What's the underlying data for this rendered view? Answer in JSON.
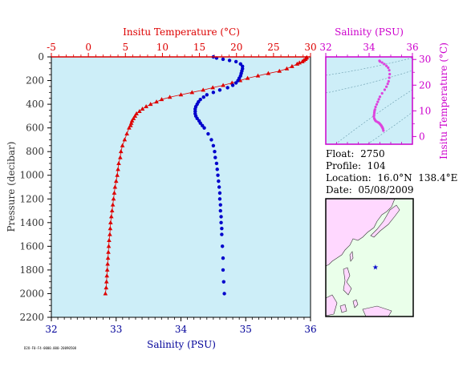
{
  "chart_data": [
    {
      "type": "scatter",
      "xlabel_top": "Insitu Temperature (°C)",
      "xlabel_bottom": "Salinity (PSU)",
      "ylabel": "Pressure (decibar)",
      "temp_ticks": [
        "-5",
        "0",
        "5",
        "10",
        "15",
        "20",
        "25",
        "30"
      ],
      "sal_ticks": [
        "32",
        "33",
        "34",
        "35",
        "36"
      ],
      "pressure_ticks": [
        "0",
        "200",
        "400",
        "600",
        "800",
        "1000",
        "1200",
        "1400",
        "1600",
        "1800",
        "2000",
        "2200"
      ],
      "temp_xlim": [
        -5,
        30
      ],
      "sal_xlim": [
        32,
        36
      ],
      "ylim": [
        0,
        2200
      ],
      "y_inverted": true,
      "colors": {
        "temperature": "#dd0000",
        "salinity": "#0000cc",
        "plot_bg": "#cdeef8"
      },
      "temperature": {
        "pressure": [
          5,
          10,
          20,
          30,
          40,
          50,
          60,
          80,
          100,
          120,
          140,
          160,
          180,
          200,
          220,
          240,
          260,
          280,
          300,
          320,
          340,
          360,
          380,
          400,
          420,
          440,
          460,
          480,
          500,
          520,
          540,
          560,
          580,
          600,
          650,
          700,
          750,
          800,
          850,
          900,
          950,
          1000,
          1050,
          1100,
          1150,
          1200,
          1250,
          1300,
          1350,
          1400,
          1450,
          1500,
          1550,
          1600,
          1650,
          1700,
          1750,
          1800,
          1850,
          1900,
          1950,
          2000
        ],
        "values": [
          29.5,
          29.4,
          29.3,
          29.1,
          28.9,
          28.5,
          28.2,
          27.5,
          26.8,
          25.8,
          24.3,
          22.9,
          21.5,
          20.5,
          19.4,
          18.2,
          16.8,
          15.5,
          14.0,
          12.5,
          11.0,
          9.9,
          9.2,
          8.4,
          7.8,
          7.3,
          6.9,
          6.5,
          6.3,
          6.1,
          5.9,
          5.8,
          5.7,
          5.5,
          5.2,
          4.9,
          4.6,
          4.4,
          4.3,
          4.1,
          4.0,
          3.9,
          3.75,
          3.6,
          3.5,
          3.4,
          3.3,
          3.2,
          3.1,
          3.0,
          2.95,
          2.9,
          2.8,
          2.75,
          2.7,
          2.65,
          2.6,
          2.55,
          2.5,
          2.45,
          2.4,
          2.3
        ]
      },
      "salinity": {
        "pressure": [
          0,
          10,
          20,
          30,
          40,
          60,
          80,
          100,
          120,
          140,
          160,
          180,
          200,
          220,
          240,
          260,
          280,
          300,
          320,
          340,
          360,
          380,
          400,
          420,
          440,
          460,
          480,
          500,
          520,
          540,
          560,
          580,
          600,
          650,
          700,
          750,
          800,
          850,
          900,
          950,
          1000,
          1050,
          1100,
          1150,
          1200,
          1250,
          1300,
          1350,
          1400,
          1450,
          1500,
          1600,
          1700,
          1800,
          1900,
          2000
        ],
        "values": [
          34.5,
          34.55,
          34.65,
          34.75,
          34.85,
          34.92,
          34.95,
          34.95,
          34.94,
          34.93,
          34.92,
          34.9,
          34.88,
          34.85,
          34.8,
          34.72,
          34.6,
          34.5,
          34.4,
          34.35,
          34.3,
          34.27,
          34.25,
          34.23,
          34.22,
          34.22,
          34.22,
          34.23,
          34.25,
          34.28,
          34.3,
          34.33,
          34.36,
          34.42,
          34.47,
          34.5,
          34.52,
          34.53,
          34.55,
          34.56,
          34.57,
          34.58,
          34.59,
          34.6,
          34.6,
          34.61,
          34.61,
          34.62,
          34.62,
          34.63,
          34.63,
          34.64,
          34.65,
          34.65,
          34.66,
          34.67
        ]
      }
    },
    {
      "type": "scatter",
      "title": "Salinity (PSU)",
      "ylabel": "Insitu Temperature (°C)",
      "x_ticks": [
        "32",
        "34",
        "36"
      ],
      "y_ticks": [
        "0",
        "10",
        "20",
        "30"
      ],
      "xlim": [
        32,
        36
      ],
      "ylim": [
        -3,
        31
      ],
      "colors": {
        "frame": "#cc00cc",
        "points": "#dd44dd",
        "plot_bg": "#cdeef8"
      },
      "points": {
        "salinity": [
          34.48,
          34.5,
          34.6,
          34.7,
          34.8,
          34.88,
          34.93,
          34.95,
          34.93,
          34.9,
          34.86,
          34.8,
          34.72,
          34.6,
          34.5,
          34.45,
          34.4,
          34.35,
          34.3,
          34.27,
          34.25,
          34.24,
          34.23,
          34.22,
          34.24,
          34.27,
          34.3,
          34.35,
          34.42,
          34.47,
          34.5,
          34.53,
          34.56,
          34.58,
          34.6,
          34.62,
          34.64,
          34.66
        ],
        "temperature": [
          29.5,
          29.2,
          28.8,
          28.2,
          27.5,
          26.8,
          25.8,
          24.3,
          22.9,
          21.5,
          20.5,
          19.4,
          18.2,
          16.8,
          15.5,
          14.5,
          13.5,
          12.5,
          11.5,
          10.5,
          9.9,
          9.2,
          8.4,
          7.8,
          7.0,
          6.5,
          6.1,
          5.8,
          5.5,
          5.2,
          4.9,
          4.6,
          4.3,
          4.0,
          3.7,
          3.4,
          3.0,
          2.3
        ]
      }
    }
  ],
  "float_info": {
    "float_label": "Float:",
    "float_value": "2750",
    "profile_label": "Profile:",
    "profile_value": "104",
    "location_label": "Location:",
    "location_value": "16.0°N  138.4°E",
    "date_label": "Date:",
    "date_value": "05/08/2009"
  },
  "map": {
    "colors": {
      "land": "#ffd8ff",
      "ocean": "#eaffea",
      "marker": "#0000cc"
    },
    "float_lat": 16.0,
    "float_lon": 138.4,
    "lon_range": [
      110,
      160
    ],
    "lat_range": [
      -5,
      45
    ]
  },
  "footer_text": "D2O-F0-F4-0000.000-20090508"
}
